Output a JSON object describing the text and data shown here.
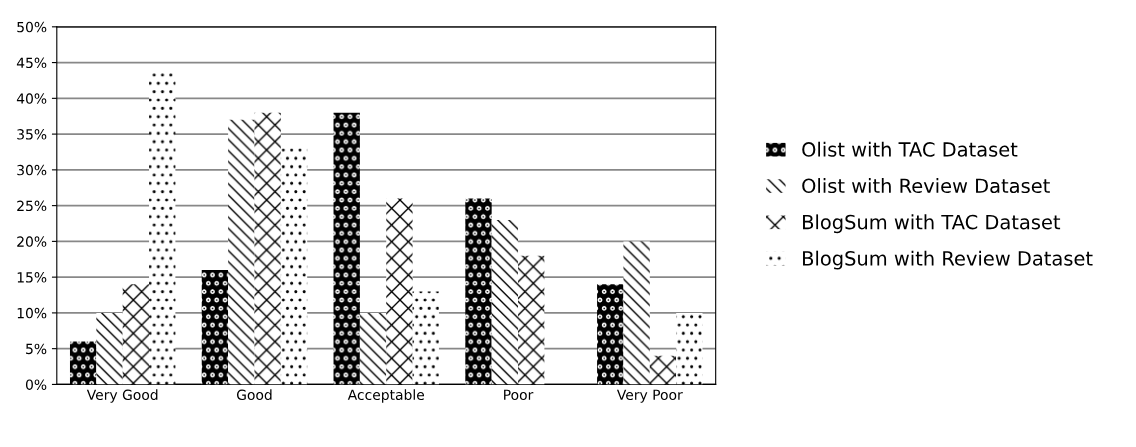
{
  "chart_data": {
    "type": "bar",
    "categories": [
      "Very Good",
      "Good",
      "Acceptable",
      "Poor",
      "Very Poor"
    ],
    "series": [
      {
        "name": "Olist with TAC Dataset",
        "color": "#000000",
        "values": [
          6,
          16,
          38,
          26,
          14
        ]
      },
      {
        "name": "Olist with Review Dataset",
        "color": "#ffffff",
        "values": [
          10,
          37,
          10,
          23,
          20
        ]
      },
      {
        "name": "BlogSum with TAC Dataset",
        "color": "#ffffff",
        "values": [
          14,
          38,
          26,
          18,
          4
        ]
      },
      {
        "name": "BlogSum with Review Dataset",
        "color": "#ffffff",
        "values": [
          44,
          33,
          13,
          null,
          10
        ]
      }
    ],
    "ylim": [
      0,
      50
    ],
    "yticks": [
      {
        "value": 0,
        "label": "0%"
      },
      {
        "value": 5,
        "label": "5%"
      },
      {
        "value": 10,
        "label": "10%"
      },
      {
        "value": 15,
        "label": "15%"
      },
      {
        "value": 20,
        "label": "20%"
      },
      {
        "value": 25,
        "label": "25%"
      },
      {
        "value": 30,
        "label": "30%"
      },
      {
        "value": 35,
        "label": "35%"
      },
      {
        "value": 40,
        "label": "40%"
      },
      {
        "value": 45,
        "label": "45%"
      },
      {
        "value": 50,
        "label": "50%"
      }
    ],
    "grid": "y",
    "legend": "right"
  }
}
